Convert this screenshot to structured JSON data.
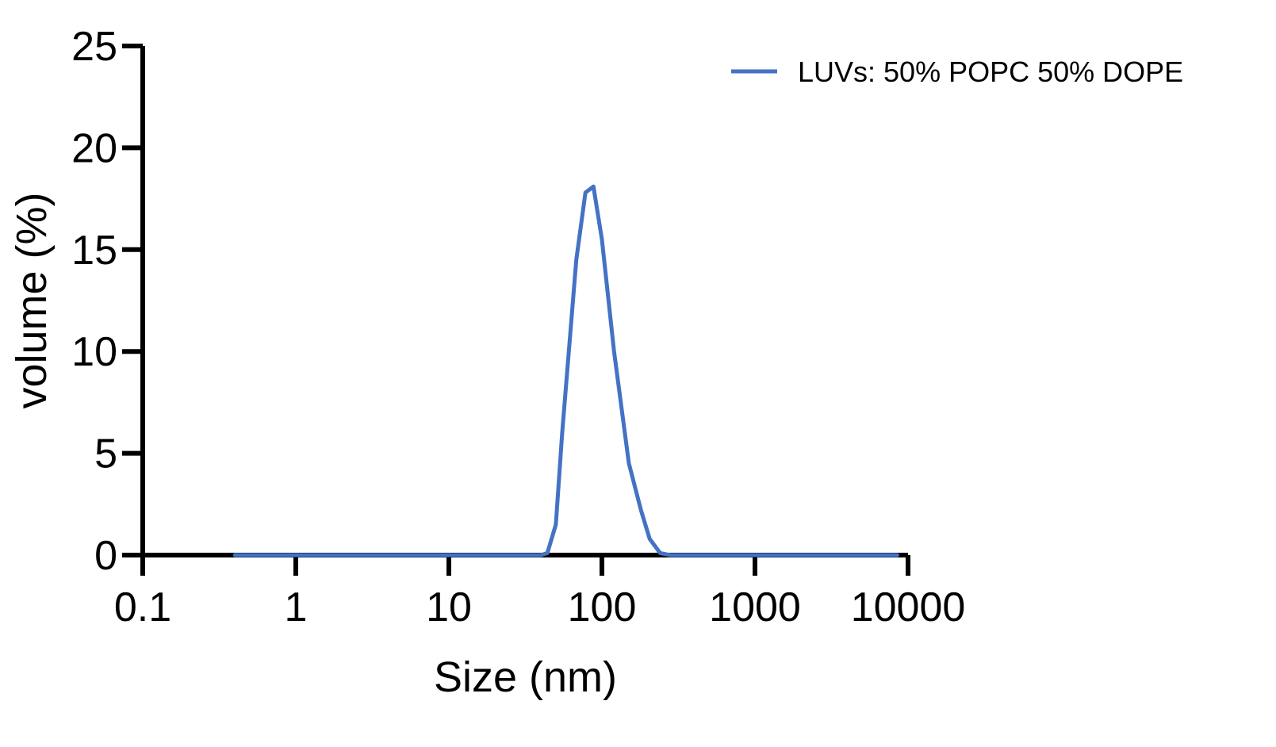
{
  "chart_data": {
    "type": "line",
    "title": "",
    "xlabel": "Size (nm)",
    "ylabel": "volume (%)",
    "x_scale": "log",
    "xlim": [
      0.1,
      10000
    ],
    "ylim": [
      0,
      25
    ],
    "x_ticks": [
      0.1,
      1,
      10,
      100,
      1000,
      10000
    ],
    "x_tick_labels": [
      "0.1",
      "1",
      "10",
      "100",
      "1000",
      "10000"
    ],
    "y_ticks": [
      0,
      5,
      10,
      15,
      20,
      25
    ],
    "y_tick_labels": [
      "0",
      "5",
      "10",
      "15",
      "20",
      "25"
    ],
    "grid": false,
    "legend_position": "top-right",
    "series": [
      {
        "name": "LUVs: 50% POPC 50% DOPE",
        "color": "#4472C4",
        "x": [
          0.4,
          1,
          5,
          20,
          40,
          44,
          50,
          55,
          68,
          78,
          88,
          100,
          120,
          150,
          180,
          205,
          240,
          280,
          350,
          500,
          1000,
          5000,
          8500
        ],
        "y": [
          0,
          0,
          0,
          0,
          0,
          0.1,
          1.5,
          6.0,
          14.5,
          17.8,
          18.1,
          15.5,
          10.0,
          4.5,
          2.2,
          0.8,
          0.1,
          0,
          0,
          0,
          0,
          0,
          0
        ]
      }
    ]
  }
}
